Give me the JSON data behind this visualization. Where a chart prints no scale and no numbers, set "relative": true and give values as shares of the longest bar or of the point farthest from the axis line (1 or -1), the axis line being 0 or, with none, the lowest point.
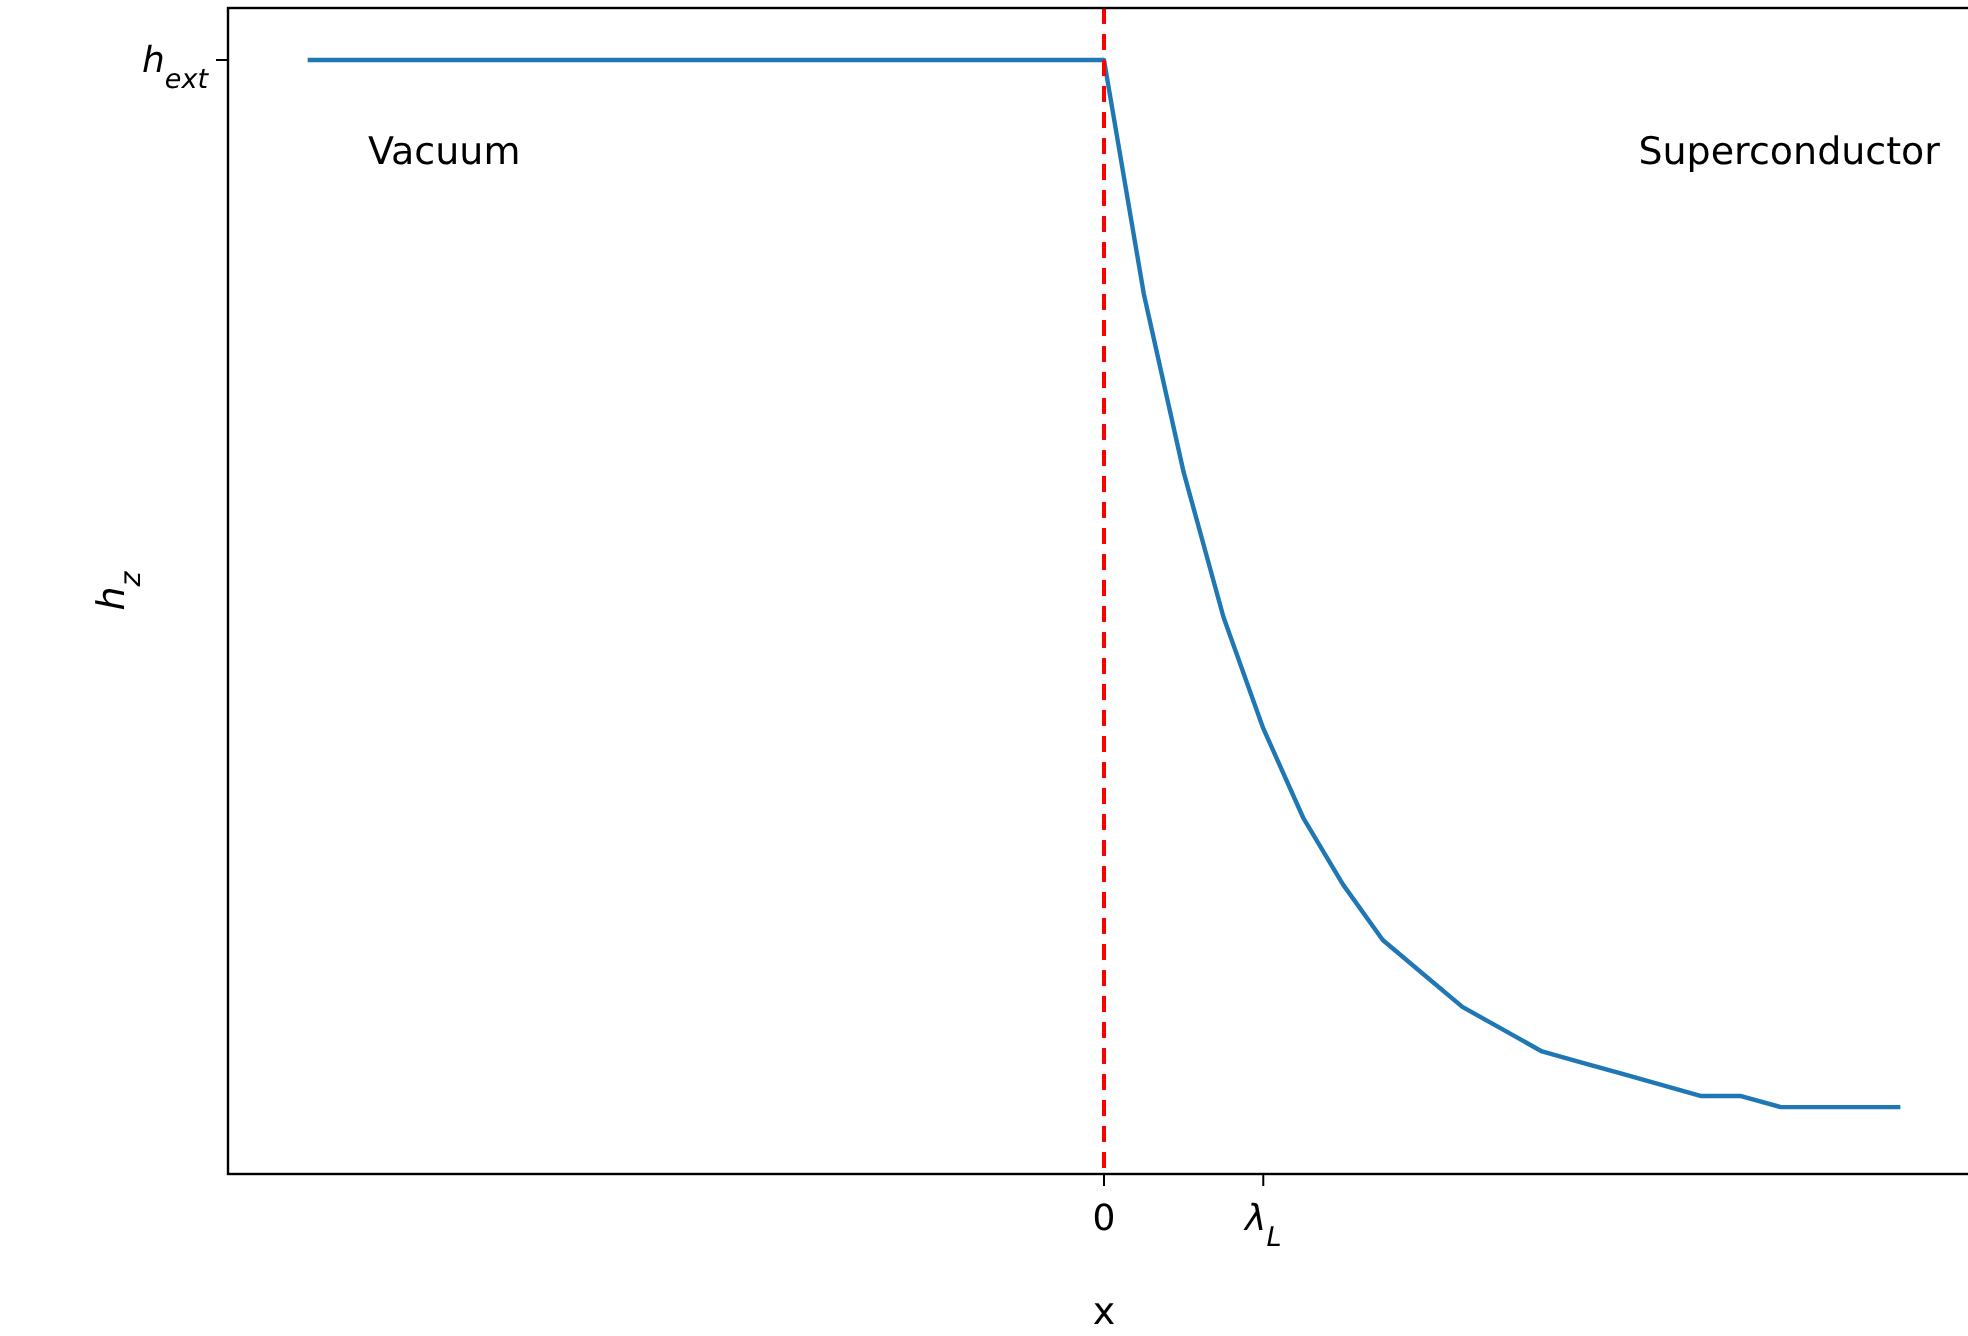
{
  "chart_data": {
    "type": "line",
    "xlabel": "x",
    "ylabel": "h$_{z}$",
    "relative": true,
    "categories": [
      null,
      null,
      null,
      null,
      null,
      null,
      null,
      null,
      null,
      null,
      null,
      null,
      null,
      null,
      null,
      null,
      null,
      null,
      null,
      null,
      "0",
      null,
      null,
      null,
      "λ$_{L}$",
      null,
      null,
      null,
      null,
      null,
      null,
      null,
      null,
      null,
      null,
      null,
      null,
      null,
      null,
      null,
      null
    ],
    "series": [
      {
        "color": "#1f77b4",
        "values": [
          1,
          1,
          1,
          1,
          1,
          1,
          1,
          1,
          1,
          1,
          1,
          1,
          1,
          1,
          1,
          1,
          1,
          1,
          1,
          1,
          1,
          0.79,
          0.63,
          0.5,
          0.4,
          0.32,
          0.26,
          0.21,
          0.18,
          0.15,
          0.13,
          0.11,
          0.1,
          0.09,
          0.08,
          0.07,
          0.07,
          0.06,
          0.06,
          0.06,
          0.06
        ]
      }
    ],
    "ref_lines": [
      {
        "axis": "x",
        "value": "0",
        "color": "#ff0000",
        "line_style": "dashed"
      }
    ],
    "annotations": [
      "Vacuum",
      "Superconductor",
      "h$_{ext}$"
    ]
  }
}
